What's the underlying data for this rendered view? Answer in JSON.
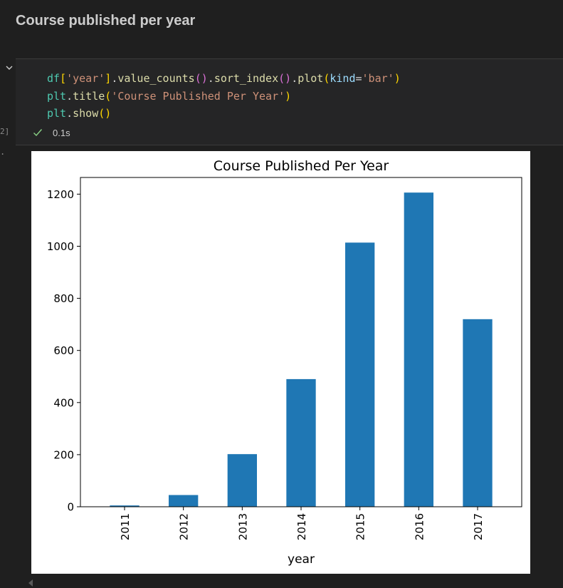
{
  "markdown": {
    "heading": "Course published per year"
  },
  "cell": {
    "execution_count": "2]",
    "output_marker": ".",
    "status": {
      "icon": "check-icon",
      "time": "0.1s",
      "color": "#89d185"
    }
  },
  "code_lines": [
    "df['year'].value_counts().sort_index().plot(kind='bar')",
    "plt.title('Course Published Per Year')",
    "plt.show()"
  ],
  "chart_data": {
    "type": "bar",
    "title": "Course Published Per Year",
    "xlabel": "year",
    "ylabel": "",
    "categories": [
      "2011",
      "2012",
      "2013",
      "2014",
      "2015",
      "2016",
      "2017"
    ],
    "values": [
      5,
      45,
      202,
      490,
      1014,
      1206,
      720
    ],
    "ylim": [
      0,
      1264
    ],
    "yticks": [
      0,
      200,
      400,
      600,
      800,
      1000,
      1200
    ],
    "bar_color": "#1f77b4",
    "grid": false
  }
}
